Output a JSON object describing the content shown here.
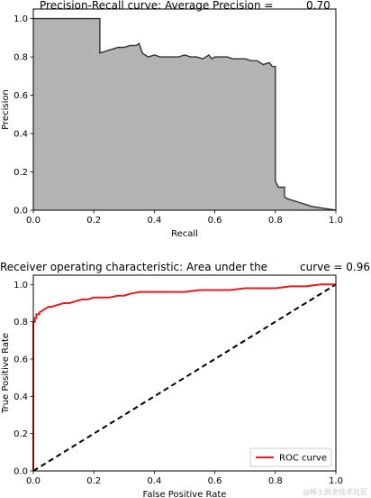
{
  "chart_data": [
    {
      "type": "area",
      "title_left": "Precision-Recall curve: Average Precision =",
      "title_right": "0.70",
      "xlabel": "Recall",
      "ylabel": "Precision",
      "xlim": [
        0.0,
        1.0
      ],
      "ylim": [
        0.0,
        1.05
      ],
      "xticks": [
        "0.0",
        "0.2",
        "0.4",
        "0.6",
        "0.8",
        "1.0"
      ],
      "yticks": [
        "0.0",
        "0.2",
        "0.4",
        "0.6",
        "0.8",
        "1.0"
      ],
      "fill_color": "#b3b3b3",
      "line_color": "#333333",
      "series": [
        {
          "x": [
            0.0,
            0.22,
            0.22,
            0.24,
            0.26,
            0.28,
            0.3,
            0.32,
            0.34,
            0.35,
            0.36,
            0.37,
            0.38,
            0.4,
            0.42,
            0.44,
            0.46,
            0.48,
            0.5,
            0.52,
            0.54,
            0.56,
            0.58,
            0.59,
            0.6,
            0.62,
            0.64,
            0.66,
            0.68,
            0.7,
            0.72,
            0.74,
            0.75,
            0.76,
            0.78,
            0.79,
            0.8,
            0.8,
            0.81,
            0.83,
            0.83,
            0.84,
            0.86,
            0.88,
            0.9,
            0.92,
            0.94,
            0.96,
            0.98,
            1.0
          ],
          "y": [
            1.0,
            1.0,
            0.82,
            0.83,
            0.84,
            0.85,
            0.85,
            0.86,
            0.86,
            0.87,
            0.82,
            0.81,
            0.8,
            0.81,
            0.8,
            0.8,
            0.8,
            0.8,
            0.81,
            0.8,
            0.8,
            0.79,
            0.81,
            0.79,
            0.8,
            0.8,
            0.8,
            0.79,
            0.79,
            0.79,
            0.78,
            0.78,
            0.77,
            0.76,
            0.77,
            0.75,
            0.75,
            0.15,
            0.12,
            0.12,
            0.07,
            0.06,
            0.05,
            0.04,
            0.03,
            0.02,
            0.015,
            0.01,
            0.005,
            0.0
          ]
        }
      ]
    },
    {
      "type": "line",
      "title_left": "Receiver operating characteristic: Area under the",
      "title_right": "curve = 0.96",
      "xlabel": "False Positive Rate",
      "ylabel": "True Positive Rate",
      "xlim": [
        0.0,
        1.0
      ],
      "ylim": [
        0.0,
        1.05
      ],
      "xticks": [
        "0.0",
        "0.2",
        "0.4",
        "0.6",
        "0.8",
        "1.0"
      ],
      "yticks": [
        "0.0",
        "0.2",
        "0.4",
        "0.6",
        "0.8",
        "1.0"
      ],
      "legend_position": "bottom-right",
      "series": [
        {
          "name": "ROC curve",
          "color": "#e41a1c",
          "x": [
            0.0,
            0.0,
            0.005,
            0.005,
            0.01,
            0.01,
            0.015,
            0.02,
            0.02,
            0.03,
            0.04,
            0.05,
            0.06,
            0.08,
            0.1,
            0.12,
            0.14,
            0.16,
            0.18,
            0.2,
            0.25,
            0.28,
            0.3,
            0.32,
            0.35,
            0.4,
            0.45,
            0.5,
            0.55,
            0.6,
            0.65,
            0.7,
            0.75,
            0.8,
            0.85,
            0.9,
            0.95,
            1.0
          ],
          "y": [
            0.0,
            0.8,
            0.8,
            0.82,
            0.82,
            0.84,
            0.84,
            0.84,
            0.85,
            0.86,
            0.87,
            0.88,
            0.88,
            0.89,
            0.9,
            0.9,
            0.91,
            0.92,
            0.92,
            0.93,
            0.93,
            0.94,
            0.94,
            0.95,
            0.96,
            0.96,
            0.96,
            0.96,
            0.97,
            0.97,
            0.97,
            0.98,
            0.98,
            0.98,
            0.99,
            0.99,
            1.0,
            1.0
          ]
        },
        {
          "name": "",
          "color": "#000000",
          "dashed": true,
          "x": [
            0.0,
            1.0
          ],
          "y": [
            0.0,
            1.0
          ]
        }
      ]
    }
  ],
  "watermark": "@稀土掘金技术社区"
}
